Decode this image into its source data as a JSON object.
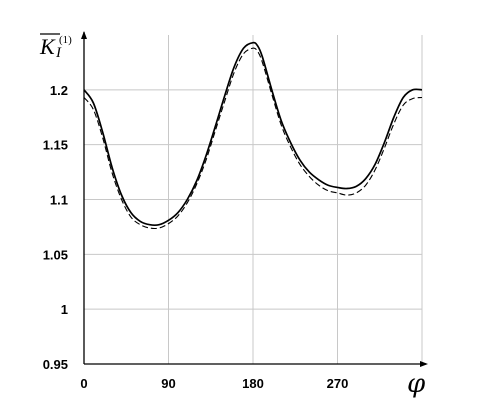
{
  "chart_data": {
    "type": "line",
    "ylabel": {
      "main": "K",
      "sub": "I",
      "sup": "(1)"
    },
    "xlabel": "φ",
    "xlim": [
      0,
      360
    ],
    "ylim": [
      0.95,
      1.25
    ],
    "x_ticks": [
      0,
      90,
      180,
      270
    ],
    "x_tick_labels": [
      "0",
      "90",
      "180",
      "270"
    ],
    "y_ticks": [
      0.95,
      1.0,
      1.05,
      1.1,
      1.15,
      1.2
    ],
    "y_tick_labels": [
      "0.95",
      "1",
      "1.05",
      "1.1",
      "1.15",
      "1.2"
    ],
    "grid": true,
    "series": [
      {
        "style": "solid",
        "x": [
          0,
          10,
          20,
          30,
          40,
          50,
          60,
          70,
          80,
          90,
          100,
          110,
          120,
          130,
          140,
          150,
          160,
          170,
          180,
          185,
          190,
          200,
          210,
          220,
          230,
          240,
          250,
          260,
          270,
          280,
          290,
          300,
          310,
          320,
          330,
          340,
          350,
          360
        ],
        "y": [
          1.2,
          1.188,
          1.161,
          1.129,
          1.104,
          1.088,
          1.08,
          1.077,
          1.077,
          1.081,
          1.088,
          1.1,
          1.117,
          1.14,
          1.167,
          1.195,
          1.221,
          1.238,
          1.243,
          1.24,
          1.23,
          1.2,
          1.172,
          1.152,
          1.136,
          1.125,
          1.118,
          1.113,
          1.111,
          1.11,
          1.112,
          1.119,
          1.132,
          1.152,
          1.175,
          1.193,
          1.2,
          1.2
        ]
      },
      {
        "style": "dashed",
        "x": [
          0,
          10,
          20,
          30,
          40,
          50,
          60,
          70,
          80,
          90,
          100,
          110,
          120,
          130,
          140,
          150,
          160,
          170,
          180,
          185,
          190,
          200,
          210,
          220,
          230,
          240,
          250,
          260,
          270,
          280,
          290,
          300,
          310,
          320,
          330,
          340,
          350,
          360
        ],
        "y": [
          1.193,
          1.182,
          1.156,
          1.124,
          1.1,
          1.084,
          1.077,
          1.074,
          1.074,
          1.078,
          1.085,
          1.097,
          1.114,
          1.136,
          1.163,
          1.19,
          1.216,
          1.233,
          1.238,
          1.235,
          1.225,
          1.196,
          1.168,
          1.148,
          1.132,
          1.121,
          1.113,
          1.108,
          1.106,
          1.104,
          1.106,
          1.113,
          1.127,
          1.147,
          1.169,
          1.186,
          1.192,
          1.193
        ]
      }
    ]
  }
}
